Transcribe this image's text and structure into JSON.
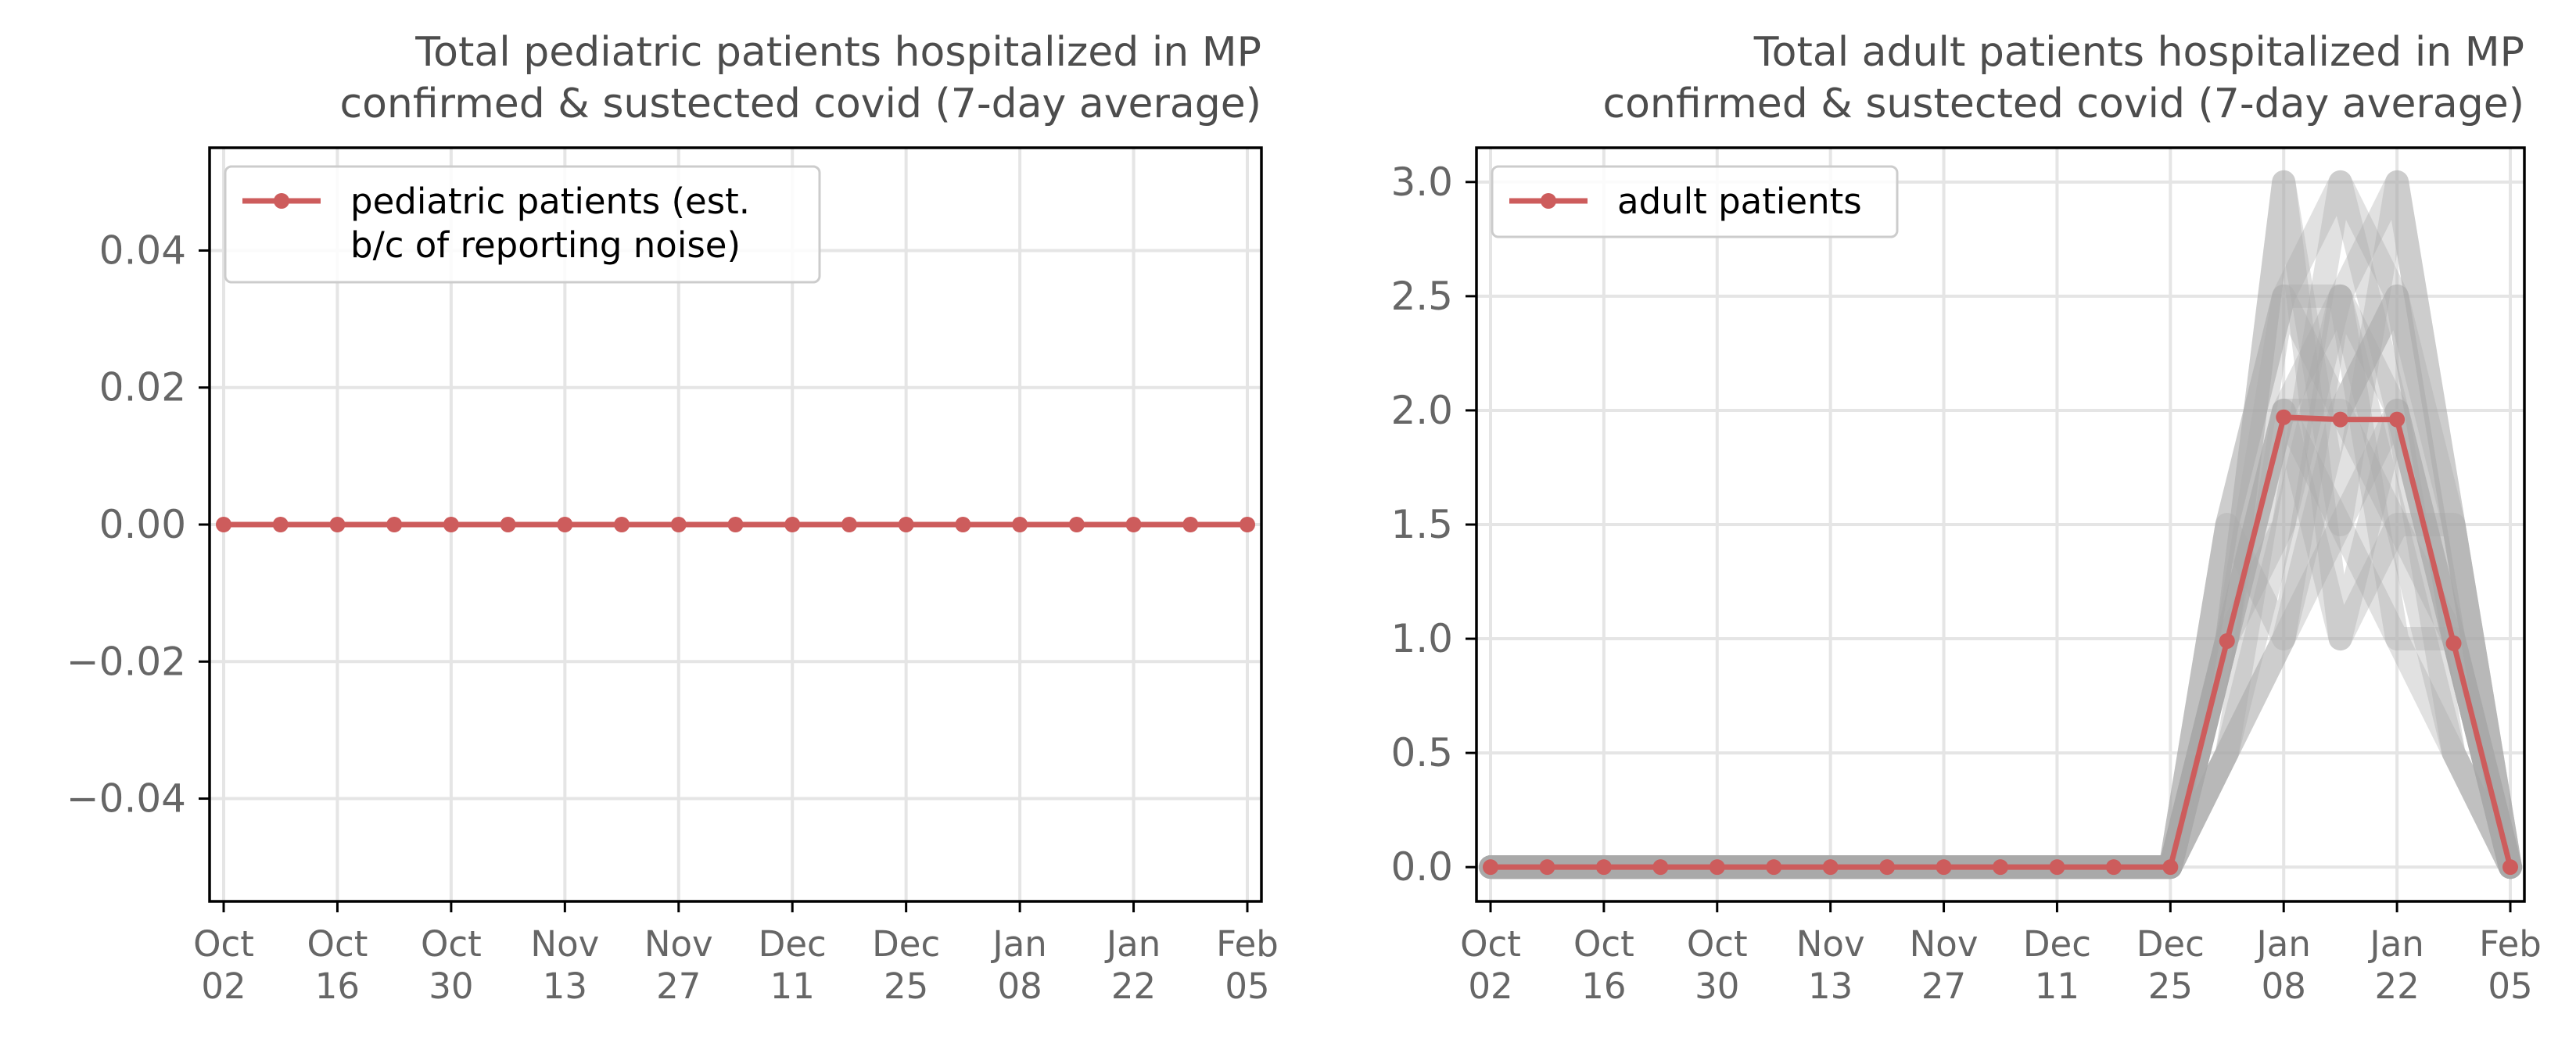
{
  "colors": {
    "series": "#cd5c5c",
    "bootstrap": "#a9a9a9",
    "grid": "#e5e5e5",
    "axis": "#000000"
  },
  "x_ticks": [
    "Oct\n02",
    "Oct\n16",
    "Oct\n30",
    "Nov\n13",
    "Nov\n27",
    "Dec\n11",
    "Dec\n25",
    "Jan\n08",
    "Jan\n22",
    "Feb\n05"
  ],
  "chart_data": [
    {
      "type": "line",
      "title": "Total pediatric patients hospitalized in MP\nconfirmed & sustected covid (7-day average)",
      "x": [
        "2022-10-02",
        "2022-10-09",
        "2022-10-16",
        "2022-10-23",
        "2022-10-30",
        "2022-11-06",
        "2022-11-13",
        "2022-11-20",
        "2022-11-27",
        "2022-12-04",
        "2022-12-11",
        "2022-12-18",
        "2022-12-25",
        "2023-01-01",
        "2023-01-08",
        "2023-01-15",
        "2023-01-22",
        "2023-01-29",
        "2023-02-05"
      ],
      "series": [
        {
          "name": "pediatric patients (est.\nb/c of reporting noise)",
          "values": [
            0,
            0,
            0,
            0,
            0,
            0,
            0,
            0,
            0,
            0,
            0,
            0,
            0,
            0,
            0,
            0,
            0,
            0,
            0
          ]
        }
      ],
      "ylim": [
        -0.055,
        0.055
      ],
      "yticks": [
        -0.04,
        -0.02,
        0.0,
        0.02,
        0.04
      ],
      "ytick_labels": [
        "−0.04",
        "−0.02",
        "0.00",
        "0.02",
        "0.04"
      ],
      "grid": true,
      "legend": "upper-left"
    },
    {
      "type": "line",
      "title": "Total adult patients hospitalized in MP\nconfirmed & sustected covid (7-day average)",
      "x": [
        "2022-10-02",
        "2022-10-09",
        "2022-10-16",
        "2022-10-23",
        "2022-10-30",
        "2022-11-06",
        "2022-11-13",
        "2022-11-20",
        "2022-11-27",
        "2022-12-04",
        "2022-12-11",
        "2022-12-18",
        "2022-12-25",
        "2023-01-01",
        "2023-01-08",
        "2023-01-15",
        "2023-01-22",
        "2023-01-29",
        "2023-02-05"
      ],
      "series": [
        {
          "name": "adult patients",
          "values": [
            0,
            0,
            0,
            0,
            0,
            0,
            0,
            0,
            0,
            0,
            0,
            0,
            0,
            0.99,
            1.97,
            1.96,
            1.96,
            0.98,
            0
          ]
        }
      ],
      "bootstrap_paths": [
        [
          0,
          0,
          0,
          0,
          0,
          0,
          0,
          0,
          0,
          0,
          0,
          0,
          0,
          0.5,
          1.0,
          1.5,
          2.0,
          1.0,
          0
        ],
        [
          0,
          0,
          0,
          0,
          0,
          0,
          0,
          0,
          0,
          0,
          0,
          0,
          0,
          1.0,
          3.0,
          1.5,
          3.0,
          1.5,
          0
        ],
        [
          0,
          0,
          0,
          0,
          0,
          0,
          0,
          0,
          0,
          0,
          0,
          0,
          0,
          1.5,
          2.5,
          2.5,
          1.0,
          0.5,
          0
        ],
        [
          0,
          0,
          0,
          0,
          0,
          0,
          0,
          0,
          0,
          0,
          0,
          0,
          0,
          1.0,
          1.5,
          3.0,
          2.5,
          1.0,
          0
        ],
        [
          0,
          0,
          0,
          0,
          0,
          0,
          0,
          0,
          0,
          0,
          0,
          0,
          0,
          0.5,
          2.0,
          1.0,
          1.5,
          1.5,
          0
        ],
        [
          0,
          0,
          0,
          0,
          0,
          0,
          0,
          0,
          0,
          0,
          0,
          0,
          0,
          1.0,
          2.5,
          2.0,
          2.5,
          1.0,
          0
        ],
        [
          0,
          0,
          0,
          0,
          0,
          0,
          0,
          0,
          0,
          0,
          0,
          0,
          0,
          1.5,
          1.0,
          2.5,
          2.0,
          0.5,
          0
        ],
        [
          0,
          0,
          0,
          0,
          0,
          0,
          0,
          0,
          0,
          0,
          0,
          0,
          0,
          1.0,
          2.0,
          2.0,
          1.5,
          1.0,
          0
        ],
        [
          0,
          0,
          0,
          0,
          0,
          0,
          0,
          0,
          0,
          0,
          0,
          0,
          0,
          0.5,
          1.5,
          2.5,
          3.0,
          1.5,
          0
        ],
        [
          0,
          0,
          0,
          0,
          0,
          0,
          0,
          0,
          0,
          0,
          0,
          0,
          0,
          1.0,
          3.0,
          1.0,
          2.0,
          1.0,
          0
        ],
        [
          0,
          0,
          0,
          0,
          0,
          0,
          0,
          0,
          0,
          0,
          0,
          0,
          0,
          1.0,
          2.0,
          1.5,
          1.0,
          1.0,
          0
        ],
        [
          0,
          0,
          0,
          0,
          0,
          0,
          0,
          0,
          0,
          0,
          0,
          0,
          0,
          1.5,
          2.5,
          3.0,
          2.0,
          1.0,
          0
        ],
        [
          0,
          0,
          0,
          0,
          0,
          0,
          0,
          0,
          0,
          0,
          0,
          0,
          0,
          0.5,
          1.0,
          2.0,
          2.5,
          1.5,
          0
        ],
        [
          0,
          0,
          0,
          0,
          0,
          0,
          0,
          0,
          0,
          0,
          0,
          0,
          0,
          1.0,
          2.0,
          2.5,
          1.5,
          0.5,
          0
        ]
      ],
      "ylim": [
        -0.15,
        3.15
      ],
      "yticks": [
        0.0,
        0.5,
        1.0,
        1.5,
        2.0,
        2.5,
        3.0
      ],
      "ytick_labels": [
        "0.0",
        "0.5",
        "1.0",
        "1.5",
        "2.0",
        "2.5",
        "3.0"
      ],
      "grid": true,
      "legend": "upper-left"
    }
  ]
}
